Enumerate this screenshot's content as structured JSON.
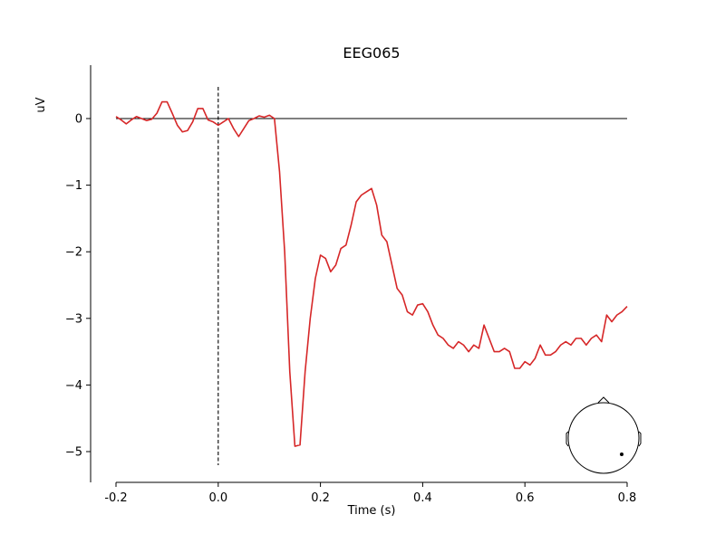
{
  "chart_data": {
    "type": "line",
    "title": "EEG065",
    "xlabel": "Time (s)",
    "ylabel": "uV",
    "xlim": [
      -0.2,
      0.8
    ],
    "ylim": [
      -5.45,
      0.8
    ],
    "x_ticks": [
      -0.2,
      0.0,
      0.2,
      0.4,
      0.6,
      0.8
    ],
    "x_tick_labels": [
      "-0.2",
      "0.0",
      "0.2",
      "0.4",
      "0.6",
      "0.8"
    ],
    "y_ticks": [
      0,
      -1,
      -2,
      -3,
      -4,
      -5
    ],
    "y_tick_labels": [
      "0",
      "−1",
      "−2",
      "−3",
      "−4",
      "−5"
    ],
    "grid": false,
    "zero_line": true,
    "event_marker_x": 0.0,
    "series": [
      {
        "color": "#d62728",
        "x": [
          -0.2,
          -0.19,
          -0.18,
          -0.17,
          -0.16,
          -0.15,
          -0.14,
          -0.13,
          -0.12,
          -0.11,
          -0.1,
          -0.09,
          -0.08,
          -0.07,
          -0.06,
          -0.05,
          -0.04,
          -0.03,
          -0.02,
          -0.01,
          0.0,
          0.01,
          0.02,
          0.03,
          0.04,
          0.05,
          0.06,
          0.07,
          0.08,
          0.09,
          0.1,
          0.11,
          0.12,
          0.13,
          0.14,
          0.15,
          0.16,
          0.17,
          0.18,
          0.19,
          0.2,
          0.21,
          0.22,
          0.23,
          0.24,
          0.25,
          0.26,
          0.27,
          0.28,
          0.29,
          0.3,
          0.31,
          0.32,
          0.33,
          0.34,
          0.35,
          0.36,
          0.37,
          0.38,
          0.39,
          0.4,
          0.41,
          0.42,
          0.43,
          0.44,
          0.45,
          0.46,
          0.47,
          0.48,
          0.49,
          0.5,
          0.51,
          0.52,
          0.53,
          0.54,
          0.55,
          0.56,
          0.57,
          0.58,
          0.59,
          0.6,
          0.61,
          0.62,
          0.63,
          0.64,
          0.65,
          0.66,
          0.67,
          0.68,
          0.69,
          0.7,
          0.71,
          0.72,
          0.73,
          0.74,
          0.75,
          0.76,
          0.77,
          0.78,
          0.79,
          0.8
        ],
        "values": [
          0.03,
          -0.02,
          -0.08,
          -0.02,
          0.03,
          0.0,
          -0.03,
          -0.01,
          0.08,
          0.25,
          0.25,
          0.08,
          -0.1,
          -0.2,
          -0.18,
          -0.05,
          0.15,
          0.15,
          -0.02,
          -0.05,
          -0.1,
          -0.05,
          0.0,
          -0.15,
          -0.27,
          -0.15,
          -0.03,
          0.0,
          0.04,
          0.02,
          0.05,
          0.0,
          -0.8,
          -2.0,
          -3.8,
          -4.92,
          -4.9,
          -3.8,
          -3.0,
          -2.4,
          -2.05,
          -2.1,
          -2.3,
          -2.2,
          -1.95,
          -1.9,
          -1.6,
          -1.25,
          -1.15,
          -1.1,
          -1.05,
          -1.3,
          -1.75,
          -1.85,
          -2.2,
          -2.55,
          -2.65,
          -2.9,
          -2.95,
          -2.8,
          -2.78,
          -2.9,
          -3.1,
          -3.25,
          -3.3,
          -3.4,
          -3.45,
          -3.35,
          -3.4,
          -3.5,
          -3.4,
          -3.45,
          -3.1,
          -3.3,
          -3.5,
          -3.5,
          -3.45,
          -3.5,
          -3.75,
          -3.75,
          -3.65,
          -3.7,
          -3.6,
          -3.4,
          -3.55,
          -3.55,
          -3.5,
          -3.4,
          -3.35,
          -3.4,
          -3.3,
          -3.3,
          -3.4,
          -3.3,
          -3.25,
          -3.35,
          -2.95,
          -3.05,
          -2.95,
          -2.9,
          -2.82
        ]
      }
    ],
    "sensor_marker_label": ""
  }
}
